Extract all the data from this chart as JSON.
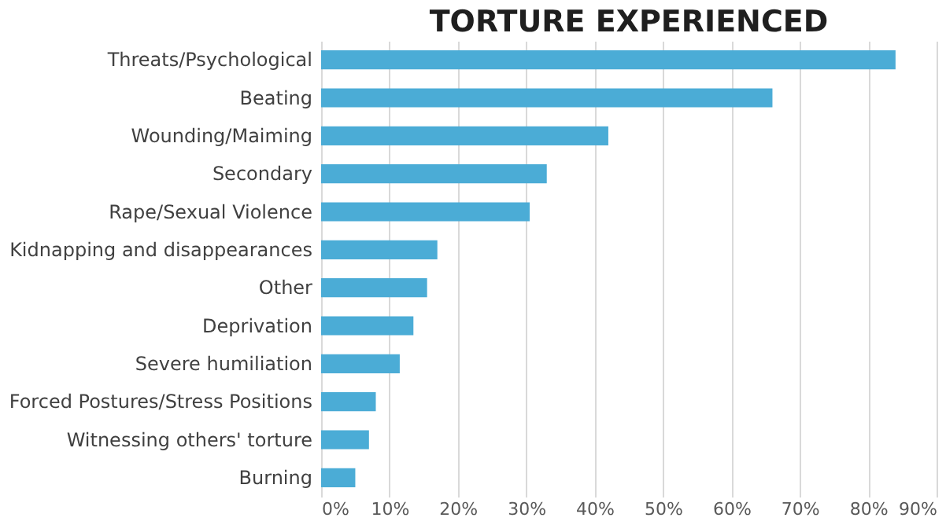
{
  "chart_data": {
    "type": "bar",
    "orientation": "horizontal",
    "title": "TORTURE EXPERIENCED",
    "categories": [
      "Threats/Psychological",
      "Beating",
      "Wounding/Maiming",
      "Secondary",
      "Rape/Sexual Violence",
      "Kidnapping and disappearances",
      "Other",
      "Deprivation",
      "Severe humiliation",
      "Forced Postures/Stress Positions",
      "Witnessing others' torture",
      "Burning"
    ],
    "values": [
      84,
      66,
      42,
      33,
      30.5,
      17,
      15.5,
      13.5,
      11.5,
      8,
      7,
      5
    ],
    "color": "#4bacd6",
    "xlim": [
      0,
      90
    ],
    "xticks": [
      {
        "value": 0,
        "label": "0%"
      },
      {
        "value": 10,
        "label": "10%"
      },
      {
        "value": 20,
        "label": "20%"
      },
      {
        "value": 30,
        "label": "30%"
      },
      {
        "value": 40,
        "label": "40%"
      },
      {
        "value": 50,
        "label": "50%"
      },
      {
        "value": 60,
        "label": "60%"
      },
      {
        "value": 70,
        "label": "70%"
      },
      {
        "value": 80,
        "label": "80%"
      },
      {
        "value": 90,
        "label": "90%"
      }
    ],
    "grid": "x"
  }
}
